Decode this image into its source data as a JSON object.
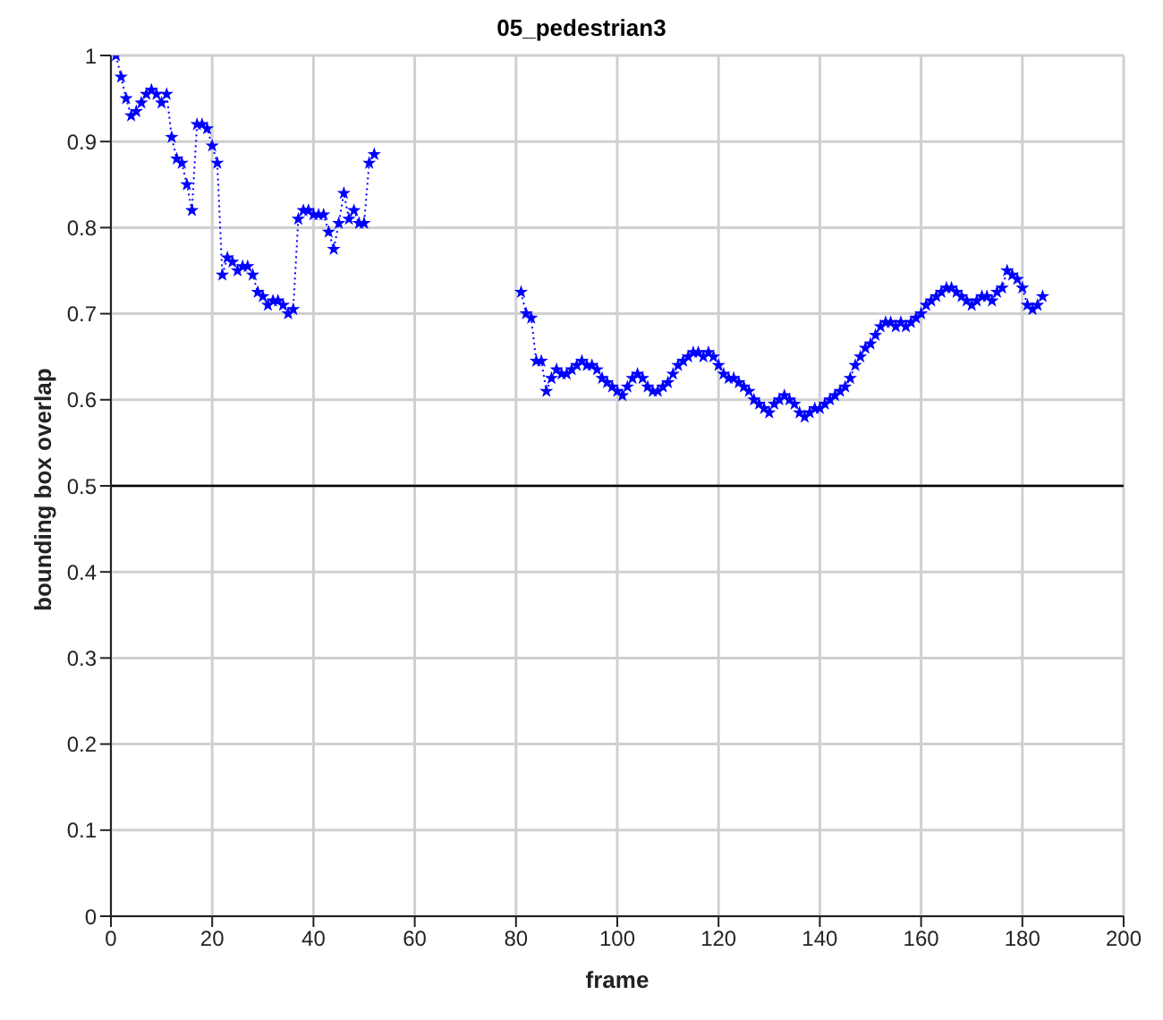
{
  "chart_data": {
    "type": "line",
    "title": "05_pedestrian3",
    "xlabel": "frame",
    "ylabel": "bounding box overlap",
    "xlim": [
      0,
      200
    ],
    "xticks": [
      0,
      20,
      40,
      60,
      80,
      100,
      120,
      140,
      160,
      180,
      200
    ],
    "ylim": [
      0,
      1
    ],
    "yticks": [
      0,
      0.1,
      0.2,
      0.3,
      0.4,
      0.5,
      0.6,
      0.7,
      0.8,
      0.9,
      1
    ],
    "grid": true,
    "marker": "star",
    "line_style": "dotted",
    "ref_lines": [
      {
        "axis": "y",
        "value": 0.5,
        "color": "#000000",
        "line_style": "solid"
      }
    ],
    "series": [
      {
        "color": "#0000ff",
        "x": [
          1,
          2,
          3,
          4,
          5,
          6,
          7,
          8,
          9,
          10,
          11,
          12,
          13,
          14,
          15,
          16,
          17,
          18,
          19,
          20,
          21,
          22,
          23,
          24,
          25,
          26,
          27,
          28,
          29,
          30,
          31,
          32,
          33,
          34,
          35,
          36,
          37,
          38,
          39,
          40,
          41,
          42,
          43,
          44,
          45,
          46,
          47,
          48,
          49,
          50,
          51,
          52
        ],
        "values": [
          1.0,
          0.975,
          0.95,
          0.93,
          0.935,
          0.945,
          0.955,
          0.96,
          0.955,
          0.945,
          0.955,
          0.905,
          0.88,
          0.875,
          0.85,
          0.82,
          0.92,
          0.92,
          0.915,
          0.895,
          0.875,
          0.745,
          0.765,
          0.76,
          0.75,
          0.755,
          0.755,
          0.745,
          0.725,
          0.72,
          0.71,
          0.715,
          0.715,
          0.71,
          0.7,
          0.705,
          0.81,
          0.82,
          0.82,
          0.815,
          0.815,
          0.815,
          0.795,
          0.775,
          0.805,
          0.84,
          0.81,
          0.82,
          0.805,
          0.805,
          0.875,
          0.885
        ]
      },
      {
        "color": "#0000ff",
        "x": [
          81,
          82,
          83,
          84,
          85,
          86,
          87,
          88,
          89,
          90,
          91,
          92,
          93,
          94,
          95,
          96,
          97,
          98,
          99,
          100,
          101,
          102,
          103,
          104,
          105,
          106,
          107,
          108,
          109,
          110,
          111,
          112,
          113,
          114,
          115,
          116,
          117,
          118,
          119,
          120,
          121,
          122,
          123,
          124,
          125,
          126,
          127,
          128,
          129,
          130,
          131,
          132,
          133,
          134,
          135,
          136,
          137,
          138,
          139,
          140,
          141,
          142,
          143,
          144,
          145,
          146,
          147,
          148,
          149,
          150,
          151,
          152,
          153,
          154,
          155,
          156,
          157,
          158,
          159,
          160,
          161,
          162,
          163,
          164,
          165,
          166,
          167,
          168,
          169,
          170,
          171,
          172,
          173,
          174,
          175,
          176,
          177,
          178,
          179,
          180,
          181,
          182,
          183,
          184
        ],
        "values": [
          0.725,
          0.7,
          0.695,
          0.645,
          0.645,
          0.61,
          0.625,
          0.635,
          0.63,
          0.63,
          0.635,
          0.64,
          0.645,
          0.64,
          0.64,
          0.635,
          0.625,
          0.62,
          0.615,
          0.61,
          0.605,
          0.615,
          0.625,
          0.63,
          0.625,
          0.615,
          0.61,
          0.61,
          0.615,
          0.62,
          0.63,
          0.64,
          0.645,
          0.65,
          0.655,
          0.655,
          0.65,
          0.655,
          0.65,
          0.64,
          0.63,
          0.625,
          0.625,
          0.62,
          0.615,
          0.61,
          0.6,
          0.595,
          0.59,
          0.585,
          0.595,
          0.6,
          0.605,
          0.6,
          0.595,
          0.585,
          0.58,
          0.585,
          0.59,
          0.59,
          0.595,
          0.6,
          0.605,
          0.61,
          0.615,
          0.625,
          0.64,
          0.65,
          0.66,
          0.665,
          0.675,
          0.685,
          0.69,
          0.69,
          0.685,
          0.69,
          0.685,
          0.69,
          0.695,
          0.7,
          0.71,
          0.715,
          0.72,
          0.725,
          0.73,
          0.73,
          0.725,
          0.72,
          0.715,
          0.71,
          0.715,
          0.72,
          0.72,
          0.715,
          0.725,
          0.73,
          0.75,
          0.745,
          0.74,
          0.73,
          0.71,
          0.705,
          0.71,
          0.72
        ]
      }
    ]
  }
}
